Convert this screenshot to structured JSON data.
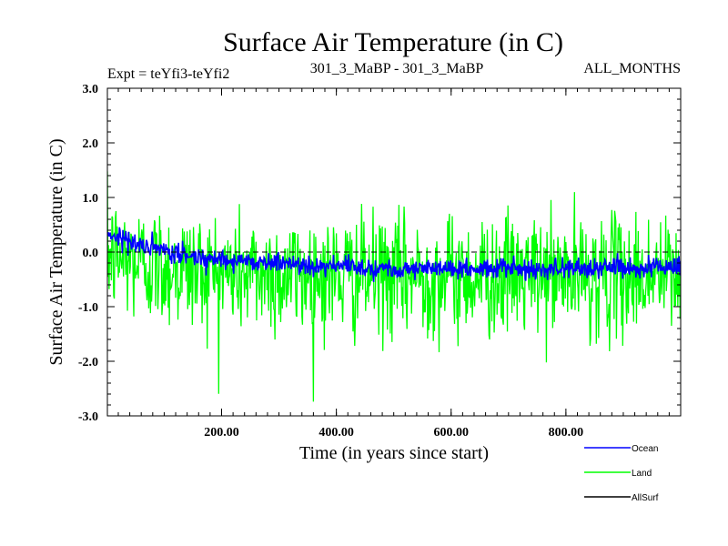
{
  "chart_data": {
    "type": "line",
    "title": "Surface Air Temperature (in C)",
    "subtitle_left": "Expt = teYfi3-teYfi2",
    "subtitle_center": "301_3_MaBP - 301_3_MaBP",
    "subtitle_right": "ALL_MONTHS",
    "xlabel": "Time (in years since start)",
    "ylabel": "Surface Air Temperature (in C)",
    "xlim": [
      1,
      1000
    ],
    "ylim": [
      -3.0,
      3.0
    ],
    "x_ticks": [
      200,
      400,
      600,
      800
    ],
    "x_tick_labels": [
      "200.00",
      "400.00",
      "600.00",
      "800.00"
    ],
    "y_ticks": [
      3.0,
      2.0,
      1.0,
      0.0,
      -1.0,
      -2.0,
      -3.0
    ],
    "y_tick_labels": [
      "3.0",
      "2.0",
      "1.0",
      "0.0",
      "-1.0",
      "-2.0",
      "-3.0"
    ],
    "reference_line": 0.0,
    "n_points": 1000,
    "series": [
      {
        "name": "Land",
        "color": "#00ff00",
        "trend_x": [
          1,
          20,
          60,
          100,
          150,
          200,
          250,
          300,
          400,
          500,
          600,
          700,
          800,
          900,
          1000
        ],
        "trend_y": [
          -0.05,
          -0.1,
          -0.2,
          -0.28,
          -0.33,
          -0.38,
          -0.4,
          -0.42,
          -0.44,
          -0.45,
          -0.45,
          -0.44,
          -0.44,
          -0.43,
          -0.42
        ],
        "noise_std": 0.55
      },
      {
        "name": "Ocean",
        "color": "#0000ff",
        "trend_x": [
          1,
          20,
          60,
          100,
          150,
          200,
          250,
          300,
          400,
          500,
          600,
          700,
          800,
          900,
          1000
        ],
        "trend_y": [
          0.35,
          0.28,
          0.12,
          0.0,
          -0.08,
          -0.13,
          -0.17,
          -0.2,
          -0.26,
          -0.3,
          -0.31,
          -0.3,
          -0.3,
          -0.28,
          -0.27
        ],
        "noise_std": 0.09
      },
      {
        "name": "AllSurf",
        "color": "#000000"
      }
    ]
  }
}
